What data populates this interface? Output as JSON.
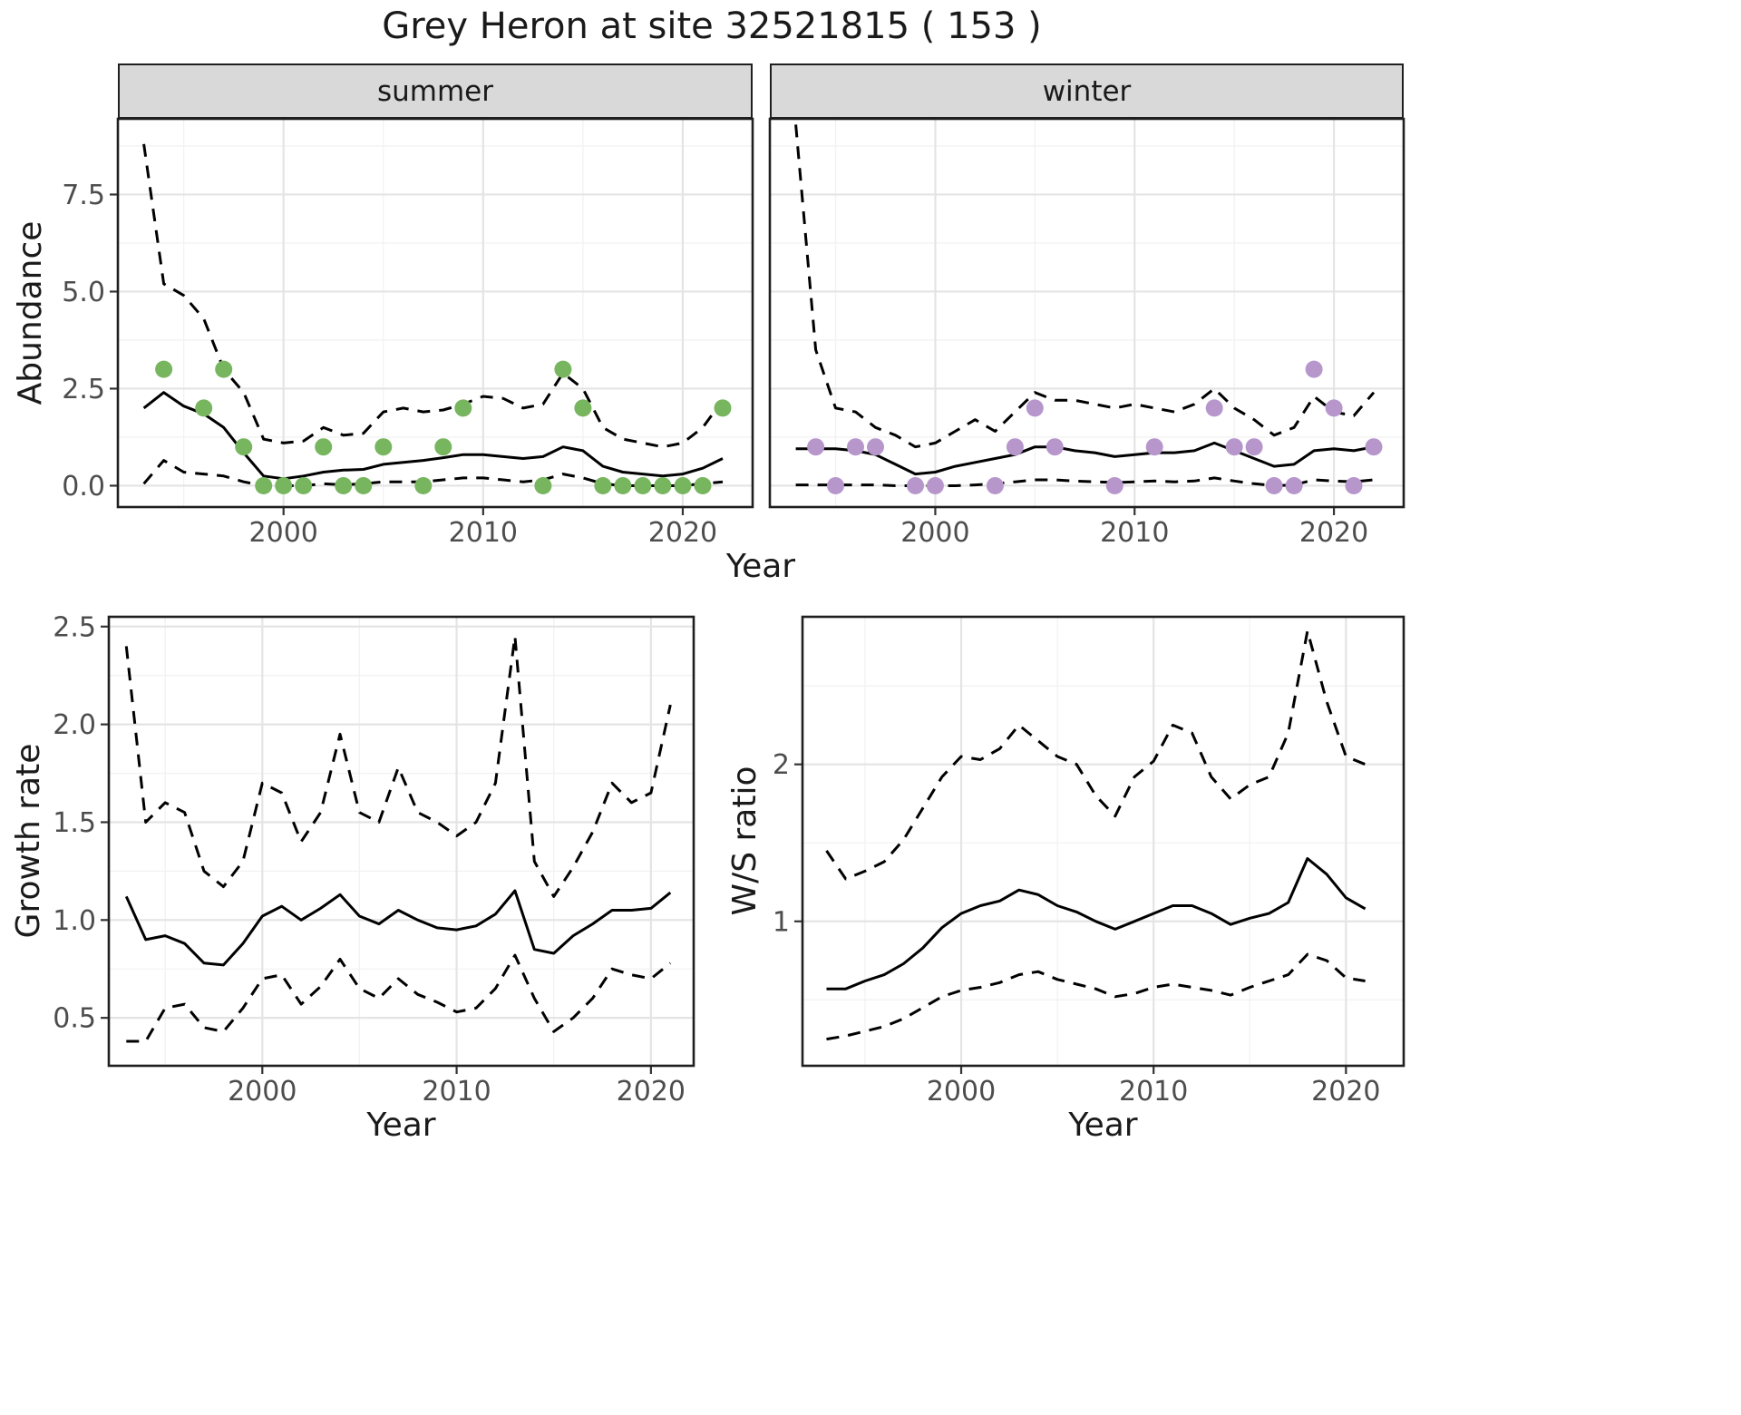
{
  "title": "Grey Heron at site 32521815 ( 153 )",
  "facets": [
    {
      "label": "summer"
    },
    {
      "label": "winter"
    }
  ],
  "axis_titles": {
    "abundance": "Abundance",
    "year": "Year",
    "growth_rate": "Growth rate",
    "ws_ratio": "W/S ratio"
  },
  "colors": {
    "line": "#000000",
    "border": "#1f1f1f",
    "strip_bg": "#d9d9d9",
    "grid_major": "#e4e4e4",
    "grid_minor": "#f2f2f2",
    "tick": "#333333",
    "tick_text": "#4d4d4d",
    "summer_point": "#77b55e",
    "winter_point": "#b796cc"
  },
  "chart_data": [
    {
      "id": "summer",
      "type": "line",
      "panel": "summer",
      "xlabel": "Year",
      "ylabel": "Abundance",
      "xlim": [
        1991.7,
        2023.5
      ],
      "ylim": [
        -0.55,
        9.45
      ],
      "xticks": [
        {
          "v": 2000,
          "label": "2000"
        },
        {
          "v": 2010,
          "label": "2010"
        },
        {
          "v": 2020,
          "label": "2020"
        }
      ],
      "yticks": [
        {
          "v": 0,
          "label": "0.0"
        },
        {
          "v": 2.5,
          "label": "2.5"
        },
        {
          "v": 5,
          "label": "5.0"
        },
        {
          "v": 7.5,
          "label": "7.5"
        }
      ],
      "x": [
        1993,
        1994,
        1995,
        1996,
        1997,
        1998,
        1999,
        2000,
        2001,
        2002,
        2003,
        2004,
        2005,
        2006,
        2007,
        2008,
        2009,
        2010,
        2011,
        2012,
        2013,
        2014,
        2015,
        2016,
        2017,
        2018,
        2019,
        2020,
        2021,
        2022
      ],
      "series": [
        {
          "name": "upper_95ci",
          "style": "dashed",
          "values": [
            8.8,
            5.2,
            4.9,
            4.3,
            3.0,
            2.4,
            1.2,
            1.1,
            1.15,
            1.5,
            1.3,
            1.35,
            1.9,
            2.0,
            1.9,
            1.95,
            2.1,
            2.3,
            2.25,
            2.0,
            2.1,
            2.9,
            2.5,
            1.5,
            1.2,
            1.1,
            1.0,
            1.1,
            1.5,
            2.2
          ]
        },
        {
          "name": "predicted_mean",
          "style": "solid",
          "values": [
            2.0,
            2.4,
            2.05,
            1.85,
            1.5,
            0.85,
            0.25,
            0.18,
            0.25,
            0.35,
            0.4,
            0.42,
            0.55,
            0.6,
            0.65,
            0.72,
            0.8,
            0.8,
            0.75,
            0.7,
            0.75,
            1.0,
            0.9,
            0.5,
            0.35,
            0.3,
            0.25,
            0.3,
            0.45,
            0.7
          ]
        },
        {
          "name": "lower_95ci",
          "style": "dashed",
          "values": [
            0.05,
            0.65,
            0.35,
            0.3,
            0.25,
            0.1,
            0.0,
            0.0,
            0.0,
            0.05,
            0.02,
            0.05,
            0.1,
            0.1,
            0.1,
            0.15,
            0.2,
            0.2,
            0.15,
            0.1,
            0.15,
            0.3,
            0.2,
            0.05,
            0.0,
            0.0,
            0.0,
            0.0,
            0.05,
            0.1
          ]
        }
      ],
      "points": {
        "name": "observed_counts",
        "color": "#77b55e",
        "x": [
          1994,
          1996,
          1997,
          1998,
          1999,
          2000,
          2001,
          2002,
          2003,
          2004,
          2005,
          2007,
          2008,
          2009,
          2013,
          2014,
          2015,
          2016,
          2017,
          2018,
          2019,
          2020,
          2021,
          2022
        ],
        "y": [
          3,
          2,
          3,
          1,
          0,
          0,
          0,
          1,
          0,
          0,
          1,
          0,
          1,
          2,
          0,
          3,
          2,
          0,
          0,
          0,
          0,
          0,
          0,
          2
        ]
      }
    },
    {
      "id": "winter",
      "type": "line",
      "panel": "winter",
      "xlabel": "Year",
      "ylabel": "Abundance",
      "xlim": [
        1991.7,
        2023.5
      ],
      "ylim": [
        -0.55,
        9.45
      ],
      "xticks": [
        {
          "v": 2000,
          "label": "2000"
        },
        {
          "v": 2010,
          "label": "2010"
        },
        {
          "v": 2020,
          "label": "2020"
        }
      ],
      "yticks": [
        {
          "v": 0,
          "label": "0.0"
        },
        {
          "v": 2.5,
          "label": "2.5"
        },
        {
          "v": 5,
          "label": "5.0"
        },
        {
          "v": 7.5,
          "label": "7.5"
        }
      ],
      "x": [
        1993,
        1994,
        1995,
        1996,
        1997,
        1998,
        1999,
        2000,
        2001,
        2002,
        2003,
        2004,
        2005,
        2006,
        2007,
        2008,
        2009,
        2010,
        2011,
        2012,
        2013,
        2014,
        2015,
        2016,
        2017,
        2018,
        2019,
        2020,
        2021,
        2022
      ],
      "series": [
        {
          "name": "upper_95ci",
          "style": "dashed",
          "values": [
            9.3,
            3.5,
            2.0,
            1.9,
            1.5,
            1.3,
            1.0,
            1.1,
            1.4,
            1.7,
            1.4,
            1.9,
            2.4,
            2.2,
            2.2,
            2.1,
            2.0,
            2.1,
            2.0,
            1.9,
            2.1,
            2.5,
            2.0,
            1.7,
            1.3,
            1.5,
            2.3,
            1.9,
            1.8,
            2.4
          ]
        },
        {
          "name": "predicted_mean",
          "style": "solid",
          "values": [
            0.95,
            0.95,
            0.95,
            0.9,
            0.8,
            0.55,
            0.3,
            0.35,
            0.5,
            0.6,
            0.7,
            0.8,
            1.0,
            1.0,
            0.9,
            0.85,
            0.75,
            0.8,
            0.85,
            0.85,
            0.9,
            1.1,
            0.9,
            0.7,
            0.5,
            0.55,
            0.9,
            0.95,
            0.9,
            1.0
          ]
        },
        {
          "name": "lower_95ci",
          "style": "dashed",
          "values": [
            0.02,
            0.02,
            0.02,
            0.02,
            0.02,
            0.0,
            0.0,
            0.0,
            0.0,
            0.02,
            0.05,
            0.1,
            0.15,
            0.15,
            0.12,
            0.1,
            0.08,
            0.1,
            0.12,
            0.1,
            0.12,
            0.2,
            0.12,
            0.05,
            0.0,
            0.02,
            0.15,
            0.12,
            0.1,
            0.15
          ]
        }
      ],
      "points": {
        "name": "observed_counts",
        "color": "#b796cc",
        "x": [
          1994,
          1995,
          1996,
          1997,
          1999,
          2000,
          2003,
          2004,
          2005,
          2006,
          2009,
          2011,
          2014,
          2015,
          2016,
          2017,
          2018,
          2019,
          2020,
          2021,
          2022
        ],
        "y": [
          1,
          0,
          1,
          1,
          0,
          0,
          0,
          1,
          2,
          1,
          0,
          1,
          2,
          1,
          1,
          0,
          0,
          3,
          2,
          0,
          1
        ]
      }
    },
    {
      "id": "growth",
      "type": "line",
      "panel": "growth_rate",
      "xlabel": "Year",
      "ylabel": "Growth rate",
      "xlim": [
        1992.1,
        2022.2
      ],
      "ylim": [
        0.255,
        2.55
      ],
      "xticks": [
        {
          "v": 2000,
          "label": "2000"
        },
        {
          "v": 2010,
          "label": "2010"
        },
        {
          "v": 2020,
          "label": "2020"
        }
      ],
      "yticks": [
        {
          "v": 0.5,
          "label": "0.5"
        },
        {
          "v": 1,
          "label": "1.0"
        },
        {
          "v": 1.5,
          "label": "1.5"
        },
        {
          "v": 2,
          "label": "2.0"
        },
        {
          "v": 2.5,
          "label": "2.5"
        }
      ],
      "x": [
        1993,
        1994,
        1995,
        1996,
        1997,
        1998,
        1999,
        2000,
        2001,
        2002,
        2003,
        2004,
        2005,
        2006,
        2007,
        2008,
        2009,
        2010,
        2011,
        2012,
        2013,
        2014,
        2015,
        2016,
        2017,
        2018,
        2019,
        2020,
        2021
      ],
      "series": [
        {
          "name": "upper_95ci",
          "style": "dashed",
          "values": [
            2.4,
            1.5,
            1.6,
            1.55,
            1.25,
            1.17,
            1.3,
            1.7,
            1.65,
            1.4,
            1.55,
            1.95,
            1.55,
            1.5,
            1.78,
            1.55,
            1.5,
            1.43,
            1.5,
            1.7,
            2.45,
            1.3,
            1.12,
            1.27,
            1.45,
            1.7,
            1.6,
            1.65,
            2.1
          ]
        },
        {
          "name": "mean_growth_rate",
          "style": "solid",
          "values": [
            1.12,
            0.9,
            0.92,
            0.88,
            0.78,
            0.77,
            0.88,
            1.02,
            1.07,
            1.0,
            1.06,
            1.13,
            1.02,
            0.98,
            1.05,
            1.0,
            0.96,
            0.95,
            0.97,
            1.03,
            1.15,
            0.85,
            0.83,
            0.92,
            0.98,
            1.05,
            1.05,
            1.06,
            1.14
          ]
        },
        {
          "name": "lower_95ci",
          "style": "dashed",
          "values": [
            0.38,
            0.38,
            0.55,
            0.57,
            0.45,
            0.43,
            0.55,
            0.7,
            0.72,
            0.57,
            0.66,
            0.8,
            0.65,
            0.6,
            0.7,
            0.62,
            0.58,
            0.53,
            0.55,
            0.65,
            0.82,
            0.6,
            0.43,
            0.5,
            0.6,
            0.75,
            0.72,
            0.7,
            0.78
          ]
        }
      ]
    },
    {
      "id": "ws",
      "type": "line",
      "panel": "ws_ratio",
      "xlabel": "Year",
      "ylabel": "W/S ratio",
      "xlim": [
        1991.75,
        2023.0
      ],
      "ylim": [
        0.08,
        2.94
      ],
      "xticks": [
        {
          "v": 2000,
          "label": "2000"
        },
        {
          "v": 2010,
          "label": "2010"
        },
        {
          "v": 2020,
          "label": "2020"
        }
      ],
      "yticks": [
        {
          "v": 1,
          "label": "1"
        },
        {
          "v": 2,
          "label": "2"
        }
      ],
      "x": [
        1993,
        1994,
        1995,
        1996,
        1997,
        1998,
        1999,
        2000,
        2001,
        2002,
        2003,
        2004,
        2005,
        2006,
        2007,
        2008,
        2009,
        2010,
        2011,
        2012,
        2013,
        2014,
        2015,
        2016,
        2017,
        2018,
        2019,
        2020,
        2021
      ],
      "series": [
        {
          "name": "upper_95ci",
          "style": "dashed",
          "values": [
            1.45,
            1.27,
            1.32,
            1.38,
            1.52,
            1.72,
            1.92,
            2.05,
            2.03,
            2.1,
            2.25,
            2.15,
            2.05,
            2.0,
            1.8,
            1.67,
            1.92,
            2.02,
            2.25,
            2.2,
            1.92,
            1.78,
            1.87,
            1.92,
            2.2,
            2.85,
            2.4,
            2.05,
            2.0
          ]
        },
        {
          "name": "mean_ws_ratio",
          "style": "solid",
          "values": [
            0.57,
            0.57,
            0.62,
            0.66,
            0.73,
            0.83,
            0.96,
            1.05,
            1.1,
            1.13,
            1.2,
            1.17,
            1.1,
            1.06,
            1.0,
            0.95,
            1.0,
            1.05,
            1.1,
            1.1,
            1.05,
            0.98,
            1.02,
            1.05,
            1.12,
            1.4,
            1.3,
            1.15,
            1.08
          ]
        },
        {
          "name": "lower_95ci",
          "style": "dashed",
          "values": [
            0.25,
            0.27,
            0.3,
            0.33,
            0.38,
            0.45,
            0.52,
            0.56,
            0.58,
            0.61,
            0.66,
            0.68,
            0.63,
            0.6,
            0.57,
            0.52,
            0.54,
            0.58,
            0.6,
            0.58,
            0.56,
            0.53,
            0.58,
            0.62,
            0.66,
            0.79,
            0.75,
            0.64,
            0.62
          ]
        }
      ]
    }
  ]
}
